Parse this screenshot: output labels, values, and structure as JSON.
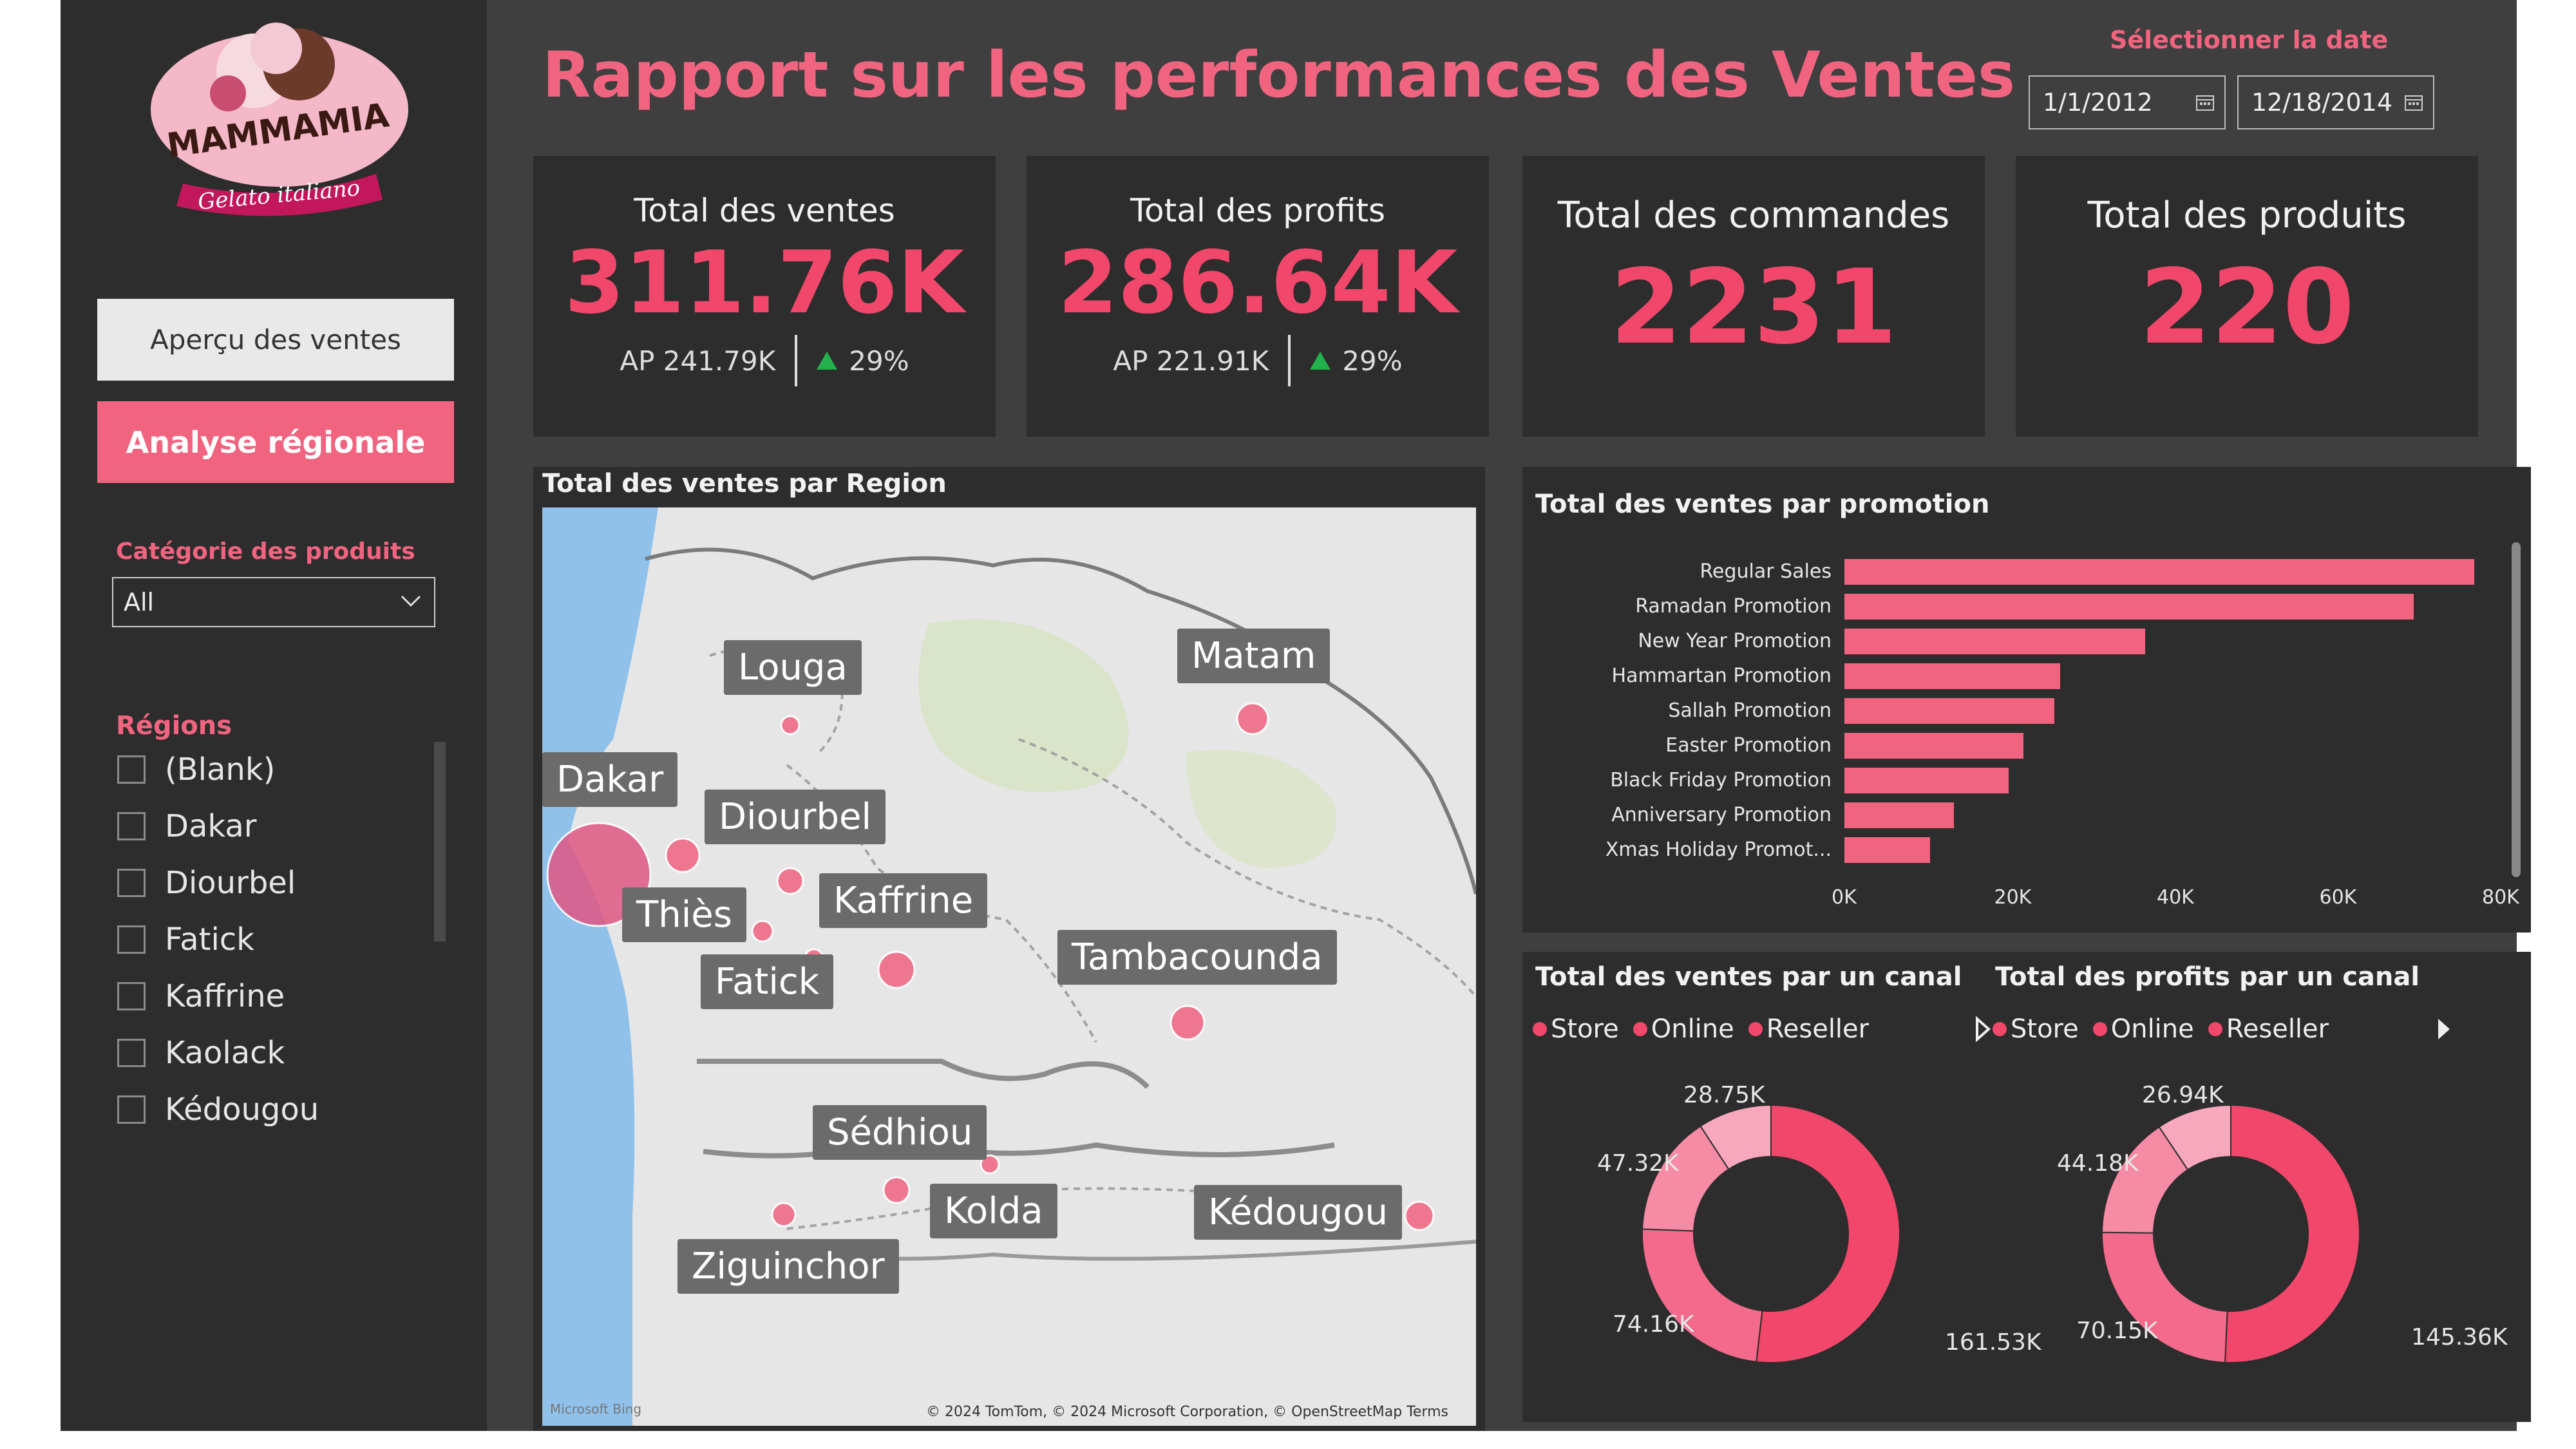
{
  "app": {
    "title": "Rapport sur les performances des Ventes"
  },
  "logo": {
    "brand": "MAMMAMIA",
    "tagline": "Gelato italiano"
  },
  "nav": {
    "overview": "Aperçu des ventes",
    "regional": "Analyse régionale"
  },
  "filters": {
    "category_label": "Catégorie des produits",
    "category_value": "All",
    "regions_label": "Régions",
    "regions": [
      "(Blank)",
      "Dakar",
      "Diourbel",
      "Fatick",
      "Kaffrine",
      "Kaolack",
      "Kédougou"
    ]
  },
  "date": {
    "label": "Sélectionner la date",
    "start": "1/1/2012",
    "end": "12/18/2014"
  },
  "kpis": [
    {
      "title": "Total des ventes",
      "value": "311.76K",
      "ap": "AP 241.79K",
      "delta": "29%"
    },
    {
      "title": "Total des profits",
      "value": "286.64K",
      "ap": "AP 221.91K",
      "delta": "29%"
    },
    {
      "title": "Total des commandes",
      "value": "2231"
    },
    {
      "title": "Total des produits",
      "value": "220"
    }
  ],
  "map": {
    "title": "Total des ventes par Region",
    "labels": [
      "Louga",
      "Matam",
      "Dakar",
      "Diourbel",
      "Kaffrine",
      "Thiès",
      "Fatick",
      "Tambacounda",
      "Sédhiou",
      "Kolda",
      "Kédougou",
      "Ziguinchor"
    ],
    "attribution": "© 2024 TomTom, © 2024 Microsoft Corporation, © OpenStreetMap  Terms",
    "brand": "Microsoft Bing"
  },
  "promo": {
    "title": "Total des ventes par promotion",
    "xticks": [
      "0K",
      "20K",
      "40K",
      "60K",
      "80K"
    ]
  },
  "canal_sales": {
    "title": "Total des ventes par un canal",
    "legend": [
      "Store",
      "Online",
      "Reseller"
    ],
    "labels": [
      "28.75K",
      "47.32K",
      "74.16K",
      "161.53K"
    ]
  },
  "canal_profit": {
    "title": "Total des profits par un canal",
    "legend": [
      "Store",
      "Online",
      "Reseller"
    ],
    "labels": [
      "26.94K",
      "44.18K",
      "70.15K",
      "145.36K"
    ]
  },
  "colors": {
    "accent": "#f06480",
    "value": "#f0476a",
    "panel": "#2d2d2d",
    "bg": "#3f3f3f"
  },
  "chart_data": [
    {
      "type": "bar",
      "title": "Total des ventes par promotion",
      "categories": [
        "Regular Sales",
        "Ramadan Promotion",
        "New Year Promotion",
        "Hammartan Promotion",
        "Sallah Promotion",
        "Easter Promotion",
        "Black Friday Promotion",
        "Anniversary Promotion",
        "Xmas Holiday Promot..."
      ],
      "values": [
        77500,
        70000,
        37000,
        26500,
        25800,
        22000,
        20200,
        13500,
        10500
      ],
      "xlim": [
        0,
        80000
      ]
    },
    {
      "type": "pie",
      "title": "Total des ventes par un canal",
      "labels": [
        "161.53K",
        "74.16K",
        "47.32K",
        "28.75K"
      ],
      "values": [
        161.53,
        74.16,
        47.32,
        28.75
      ]
    },
    {
      "type": "pie",
      "title": "Total des profits par un canal",
      "labels": [
        "145.36K",
        "70.15K",
        "44.18K",
        "26.94K"
      ],
      "values": [
        145.36,
        70.15,
        44.18,
        26.94
      ]
    }
  ]
}
